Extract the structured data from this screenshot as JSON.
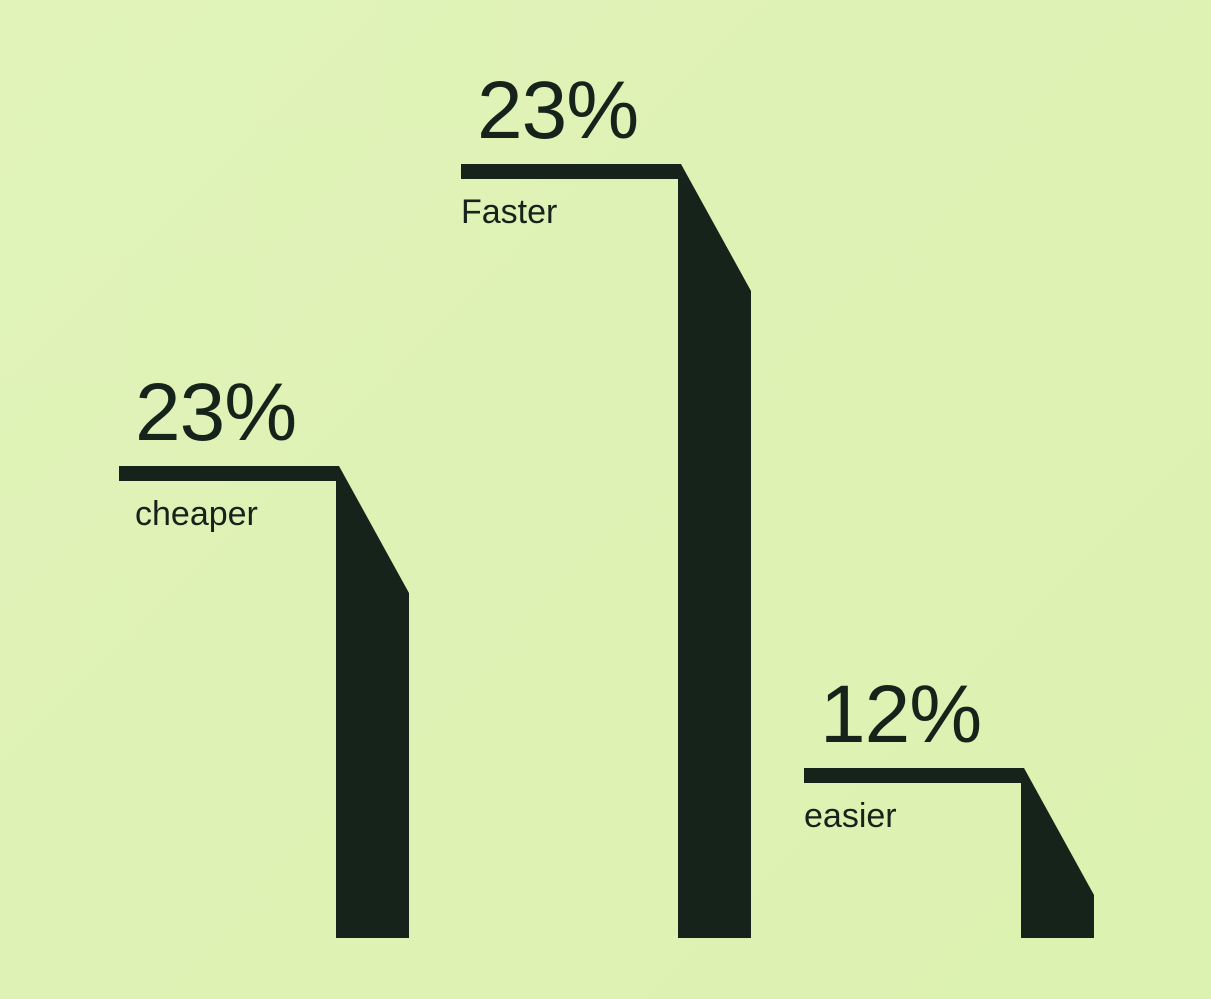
{
  "colors": {
    "background": "#e0f3b7",
    "bar": "#15231a"
  },
  "chart_data": {
    "type": "bar",
    "title": "",
    "categories": [
      "cheaper",
      "Faster",
      "easier"
    ],
    "values": [
      23,
      23,
      12
    ],
    "value_labels": [
      "23%",
      "23%",
      "12%"
    ],
    "unit": "%",
    "grid": false,
    "legend": "none"
  }
}
